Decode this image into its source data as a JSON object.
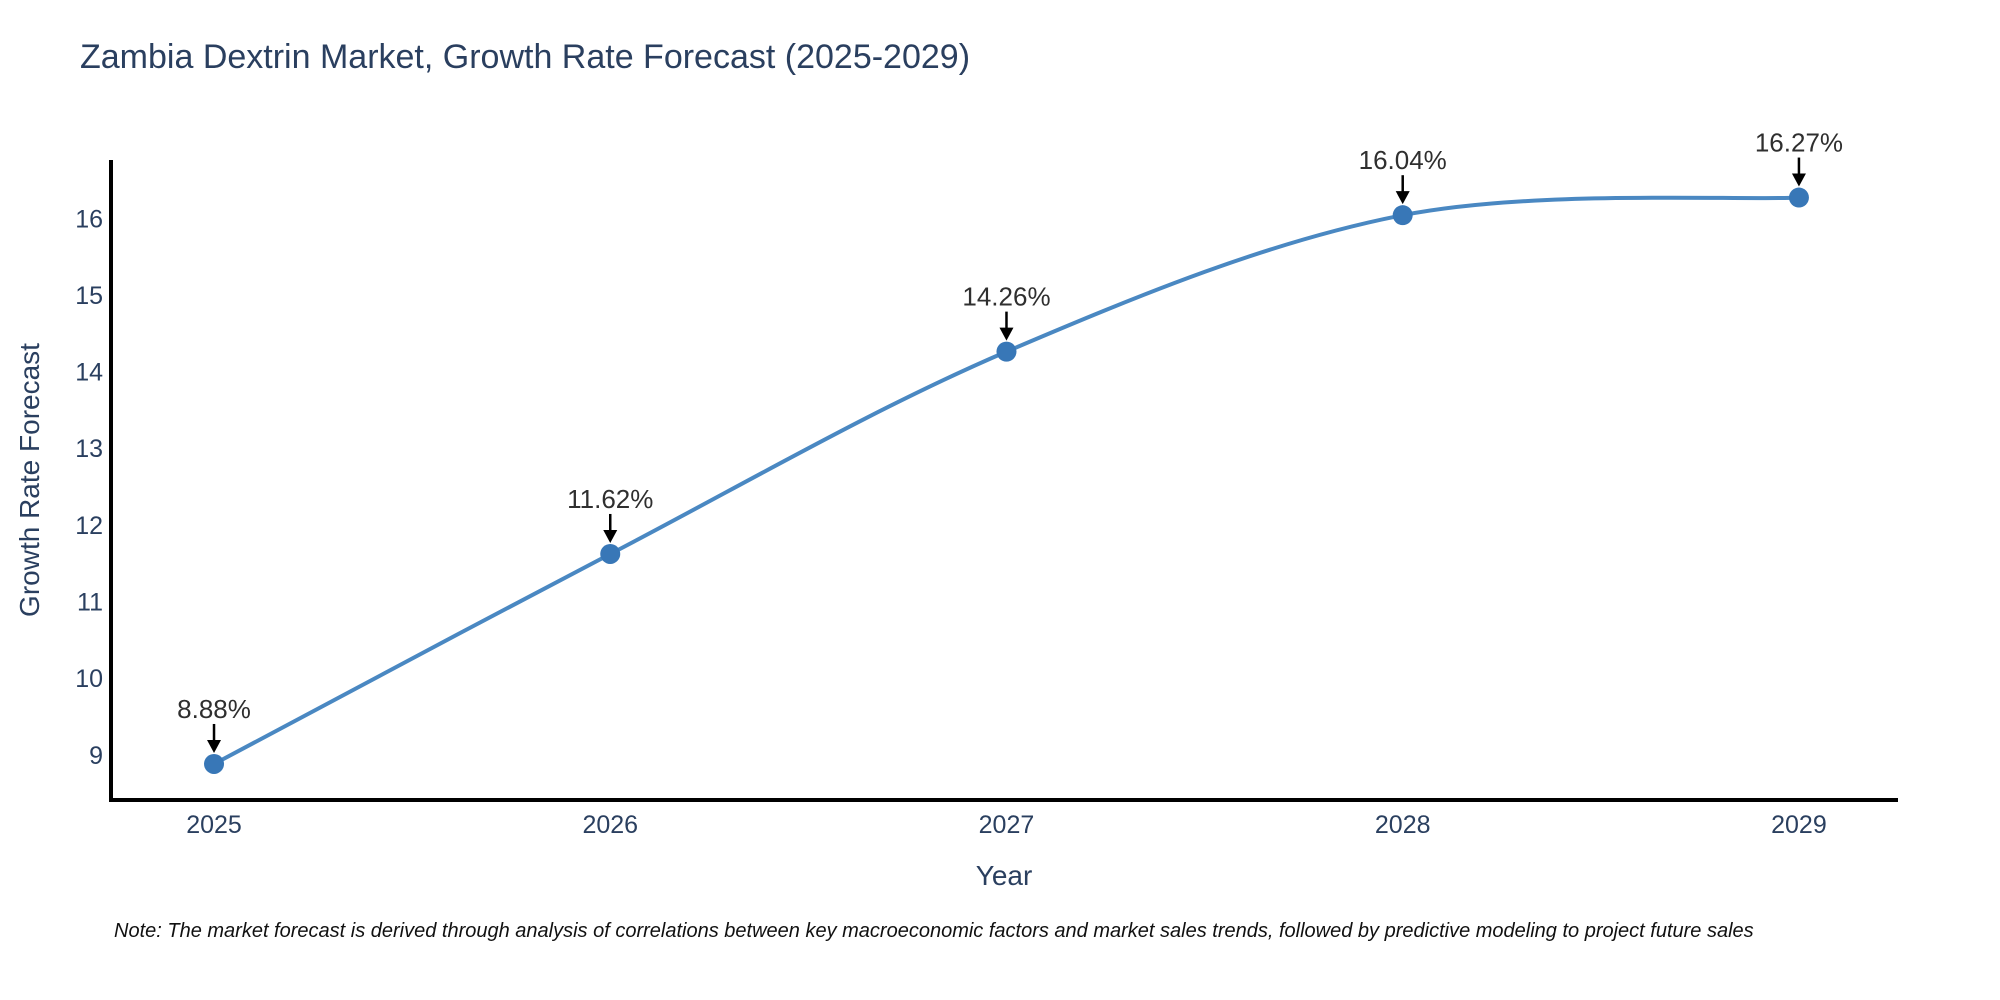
{
  "header": {
    "title": "Zambia Dextrin Market, Growth Rate Forecast (2025-2029)"
  },
  "chart_data": {
    "type": "line",
    "title": "Zambia Dextrin Market, Growth Rate Forecast (2025-2029)",
    "x": [
      2025,
      2026,
      2027,
      2028,
      2029
    ],
    "y": [
      8.88,
      11.62,
      14.26,
      16.04,
      16.27
    ],
    "point_labels": [
      "8.88%",
      "11.62%",
      "14.26%",
      "16.04%",
      "16.27%"
    ],
    "xlabel": "Year",
    "ylabel": "Growth Rate Forecast",
    "x_tick_labels": [
      "2025",
      "2026",
      "2027",
      "2028",
      "2029"
    ],
    "y_ticks": [
      9,
      10,
      11,
      12,
      13,
      14,
      15,
      16
    ],
    "x_range": [
      2024.74,
      2029.25
    ],
    "y_range": [
      8.41,
      16.76
    ],
    "line_shape": "spline",
    "grid": false,
    "legend_position": "none",
    "colors": {
      "line": "#4a88c2",
      "marker": "#3877b7",
      "axis": "#000000",
      "heading_text": "#2a3f5f",
      "tick_text": "#2a3f5f",
      "annotation_text": "#2f2f2f",
      "arrow": "#000000",
      "background": "#ffffff"
    }
  },
  "footnote": {
    "text": "Note: The market forecast is derived through analysis of correlations between key macroeconomic factors and market sales trends, followed by predictive modeling to project future sales"
  }
}
